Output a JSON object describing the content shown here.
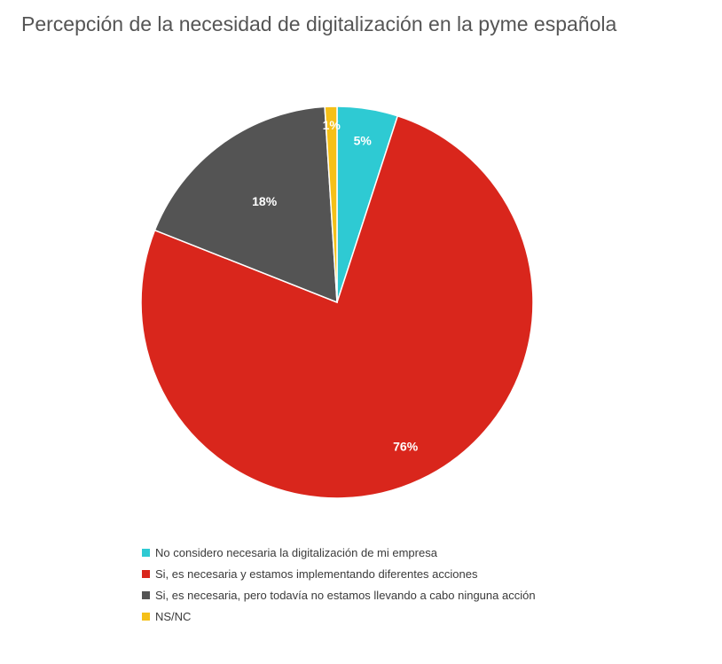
{
  "title": "Percepción de la necesidad de digitalización en la pyme española",
  "chart_data": {
    "type": "pie",
    "title": "Percepción de la necesidad de digitalización en la pyme española",
    "slices": [
      {
        "label": "No considero necesaria la digitalización de mi empresa",
        "value": 5,
        "data_label": "5%",
        "color": "#2ecad3"
      },
      {
        "label": "Si, es necesaria y estamos implementando diferentes acciones",
        "value": 76,
        "data_label": "76%",
        "color": "#d9261c"
      },
      {
        "label": "Si, es necesaria, pero todavía no estamos llevando a cabo ninguna acción",
        "value": 18,
        "data_label": "18%",
        "color": "#545454"
      },
      {
        "label": "NS/NC",
        "value": 1,
        "data_label": "1%",
        "color": "#f5c018"
      }
    ],
    "legend_position": "bottom"
  }
}
